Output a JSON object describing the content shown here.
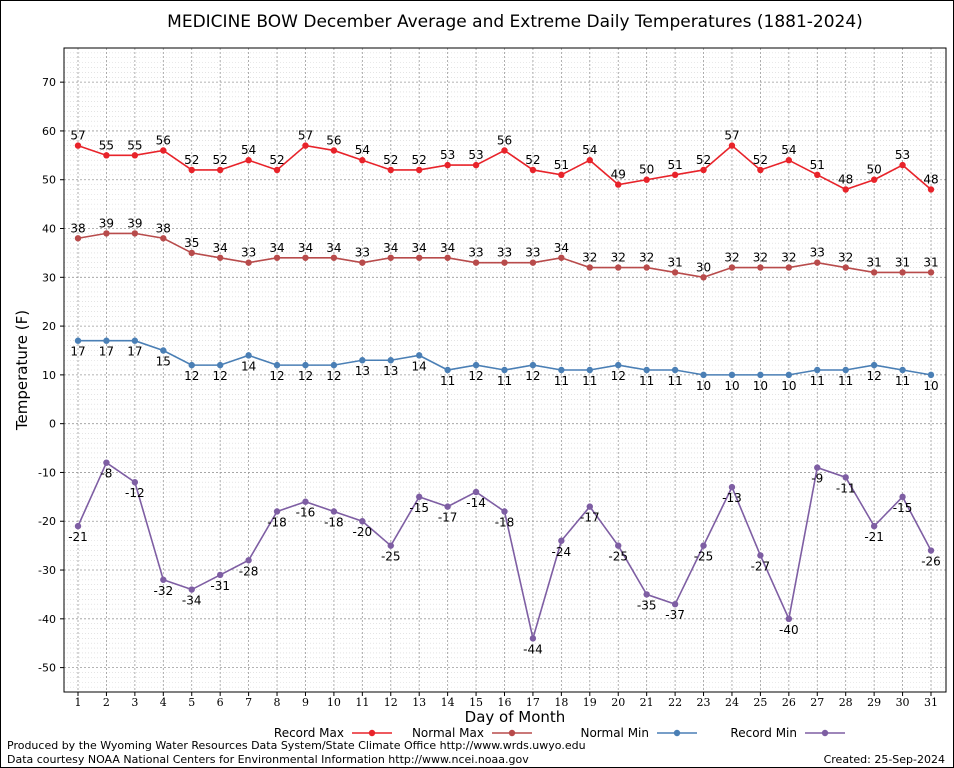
{
  "chart_data": {
    "type": "line",
    "title": "MEDICINE BOW December Average and Extreme Daily Temperatures (1881-2024)",
    "xlabel": "Day of Month",
    "ylabel": "Temperature (F)",
    "ylim": [
      -55,
      77
    ],
    "yticks": [
      -50,
      -40,
      -30,
      -20,
      -10,
      0,
      10,
      20,
      30,
      40,
      50,
      60,
      70
    ],
    "x": [
      1,
      2,
      3,
      4,
      5,
      6,
      7,
      8,
      9,
      10,
      11,
      12,
      13,
      14,
      15,
      16,
      17,
      18,
      19,
      20,
      21,
      22,
      23,
      24,
      25,
      26,
      27,
      28,
      29,
      30,
      31
    ],
    "grid": true,
    "legend_position": "bottom",
    "series": [
      {
        "name": "Record Max",
        "color": "#e8232a",
        "label_side": "above",
        "values": [
          57,
          55,
          55,
          56,
          52,
          52,
          54,
          52,
          57,
          56,
          54,
          52,
          52,
          53,
          53,
          56,
          52,
          51,
          54,
          49,
          50,
          51,
          52,
          57,
          52,
          54,
          51,
          48,
          50,
          53,
          48
        ]
      },
      {
        "name": "Normal Max",
        "color": "#b84b4b",
        "label_side": "above",
        "values": [
          38,
          39,
          39,
          38,
          35,
          34,
          33,
          34,
          34,
          34,
          33,
          34,
          34,
          34,
          33,
          33,
          33,
          34,
          32,
          32,
          32,
          31,
          30,
          32,
          32,
          32,
          33,
          32,
          31,
          31,
          31
        ]
      },
      {
        "name": "Normal Min",
        "color": "#4a7fb5",
        "label_side": "below",
        "values": [
          17,
          17,
          17,
          15,
          12,
          12,
          14,
          12,
          12,
          12,
          13,
          13,
          14,
          11,
          12,
          11,
          12,
          11,
          11,
          12,
          11,
          11,
          10,
          10,
          10,
          10,
          11,
          11,
          12,
          11,
          10
        ]
      },
      {
        "name": "Record Min",
        "color": "#7e5ea3",
        "label_side": "below",
        "values": [
          -21,
          -8,
          -12,
          -32,
          -34,
          -31,
          -28,
          -18,
          -16,
          -18,
          -20,
          -25,
          -15,
          -17,
          -14,
          -18,
          -44,
          -24,
          -17,
          -25,
          -35,
          -37,
          -25,
          -13,
          -27,
          -40,
          -9,
          -11,
          -21,
          -15,
          -26
        ]
      }
    ]
  },
  "footer": {
    "credit_line1": "Produced by the Wyoming Water Resources Data System/State Climate Office http://www.wrds.uwyo.edu",
    "credit_line2": "Data courtesy NOAA National Centers for Environmental Information http://www.ncei.noaa.gov",
    "created": "Created:  25-Sep-2024"
  }
}
